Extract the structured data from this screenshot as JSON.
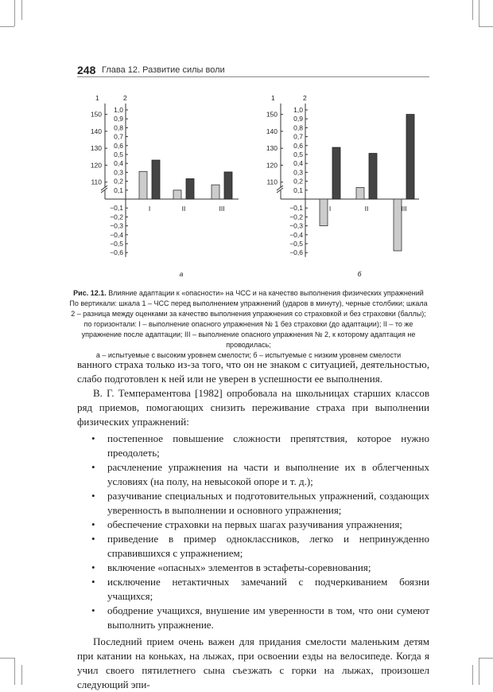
{
  "header": {
    "page_number": "248",
    "chapter_title": "Глава 12. Развитие силы воли"
  },
  "chart_data": [
    {
      "type": "bar",
      "panel_label": "а",
      "categories": [
        "I",
        "II",
        "III"
      ],
      "scale1_label": "1",
      "scale2_label": "2",
      "scale1_ticks": [
        "110",
        "120",
        "130",
        "140",
        "150"
      ],
      "scale2_ticks": [
        "1,0",
        "0,9",
        "0,8",
        "0,7",
        "0,6",
        "0,5",
        "0,4",
        "0,3",
        "0,2",
        "0,1",
        "−0,1",
        "−0,2",
        "−0,3",
        "−0,4",
        "−0,5",
        "−0,6"
      ],
      "scale2_range": [
        -0.6,
        1.0
      ],
      "scale1_range": [
        110,
        150
      ],
      "series": [
        {
          "scale": "2",
          "color": "#cccccc",
          "values": [
            0.31,
            0.1,
            0.16
          ]
        },
        {
          "scale": "1",
          "color": "#444444",
          "values": [
            123,
            112,
            116
          ]
        }
      ]
    },
    {
      "type": "bar",
      "panel_label": "б",
      "categories": [
        "I",
        "II",
        "III"
      ],
      "scale1_label": "1",
      "scale2_label": "2",
      "scale1_ticks": [
        "110",
        "120",
        "130",
        "140",
        "150"
      ],
      "scale2_ticks": [
        "1,0",
        "0,9",
        "0,8",
        "0,7",
        "0,6",
        "0,5",
        "0,4",
        "0,3",
        "0,2",
        "0,1",
        "−0,1",
        "−0,2",
        "−0,3",
        "−0,4",
        "−0,5",
        "−0,6"
      ],
      "scale2_range": [
        -0.6,
        1.0
      ],
      "scale1_range": [
        110,
        150
      ],
      "series": [
        {
          "scale": "2",
          "color": "#cccccc",
          "values": [
            -0.3,
            0.13,
            -0.58
          ]
        },
        {
          "scale": "1",
          "color": "#444444",
          "values": [
            130.5,
            127,
            150
          ]
        }
      ]
    }
  ],
  "caption": {
    "label": "Рис. 12.1.",
    "title": " Влияние адаптации к «опасности» на ЧСС и на качество выполнения физических упражнений",
    "line1": "По вертикали: шкала 1 – ЧСС перед выполнением упражнений (ударов в минуту), черные столбики; шкала 2 – разница между оценками за качество выполнения упражнения со страховкой и без страховки (баллы);",
    "line2": "по горизонтали: I – выполнение опасного упражнения № 1 без страховки (до адаптации); II – то же упражнение после адаптации; III – выполнение опасного упражнения № 2, к которому адаптация не проводилась;",
    "line3": "а – испытуемые с высоким уровнем смелости; б – испытуемые с низким уровнем смелости"
  },
  "body": {
    "p1": "ванного страха только из-за того, что он не знаком с ситуацией, деятельностью, слабо подготовлен к ней или не уверен в успешности ее выполнения.",
    "p2": "В. Г. Темпераментова [1982] опробовала на школьницах старших классов ряд приемов, помогающих снизить переживание страха при выполнении физических упражнений:",
    "bullets": [
      "постепенное повышение сложности препятствия, которое нужно преодолеть;",
      "расчленение упражнения на части и выполнение их в облегченных условиях (на полу, на невысокой опоре и т. д.);",
      "разучивание специальных и подготовительных упражнений, создающих уверенность в выполнении и основного упражнения;",
      "обеспечение страховки на первых шагах разучивания упражнения;",
      "приведение в пример одноклассников, легко и непринужденно справившихся с упражнением;",
      "включение «опасных» элементов в эстафеты-соревнования;",
      "исключение нетактичных замечаний с подчеркиванием боязни учащихся;",
      "ободрение учащихся, внушение им уверенности в том, что они сумеют выполнить упражнение."
    ],
    "p3": "Последний прием очень важен для придания смелости маленьким детям при катании на коньках, на лыжах, при освоении езды на велосипеде. Когда я учил своего пятилетнего сына съезжать с горки на лыжах, произошел следующий эпи-"
  }
}
